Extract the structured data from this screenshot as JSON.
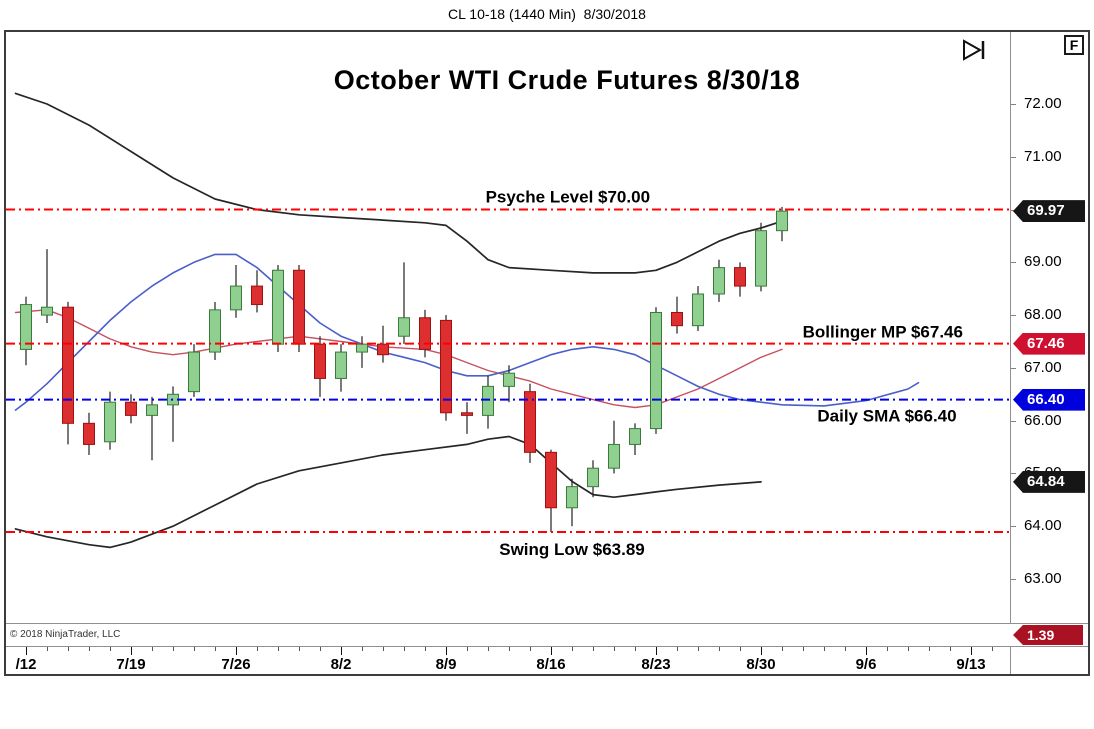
{
  "window": {
    "title": "CL 10-18 (1440 Min)  8/30/2018"
  },
  "toolbar": {
    "f_label": "F"
  },
  "chart": {
    "title": "October WTI Crude Futures 8/30/18",
    "copyright": "© 2018 NinjaTrader, LLC"
  },
  "chart_data": {
    "type": "candlestick",
    "symbol": "CL 10-18",
    "interval": "1440 Min",
    "session_date": "8/30/2018",
    "title": "October WTI Crude Futures 8/30/18",
    "y_axis": {
      "ticks": [
        "72.00",
        "71.00",
        "70.00",
        "69.00",
        "68.00",
        "67.00",
        "66.00",
        "65.00",
        "64.00",
        "63.00"
      ],
      "ylim": [
        62.3,
        72.8
      ]
    },
    "x_axis": {
      "labels": [
        {
          "text": "/12",
          "i": 0
        },
        {
          "text": "7/19",
          "i": 5
        },
        {
          "text": "7/26",
          "i": 10
        },
        {
          "text": "8/2",
          "i": 15
        },
        {
          "text": "8/9",
          "i": 20
        },
        {
          "text": "8/16",
          "i": 25
        },
        {
          "text": "8/23",
          "i": 30
        },
        {
          "text": "8/30",
          "i": 35
        },
        {
          "text": "9/6",
          "i": 40
        },
        {
          "text": "9/13",
          "i": 45
        }
      ]
    },
    "candles": [
      {
        "t": "7/12",
        "o": 67.35,
        "h": 68.35,
        "l": 67.05,
        "c": 68.2
      },
      {
        "t": "7/13",
        "o": 68.0,
        "h": 69.25,
        "l": 67.85,
        "c": 68.15
      },
      {
        "t": "7/16",
        "o": 68.15,
        "h": 68.25,
        "l": 65.55,
        "c": 65.95
      },
      {
        "t": "7/17",
        "o": 65.95,
        "h": 66.15,
        "l": 65.35,
        "c": 65.55
      },
      {
        "t": "7/18",
        "o": 65.6,
        "h": 66.55,
        "l": 65.45,
        "c": 66.35
      },
      {
        "t": "7/19",
        "o": 66.35,
        "h": 66.5,
        "l": 65.95,
        "c": 66.1
      },
      {
        "t": "7/20",
        "o": 66.1,
        "h": 66.45,
        "l": 65.25,
        "c": 66.3
      },
      {
        "t": "7/23",
        "o": 66.3,
        "h": 66.65,
        "l": 65.6,
        "c": 66.5
      },
      {
        "t": "7/24",
        "o": 66.55,
        "h": 67.45,
        "l": 66.45,
        "c": 67.3
      },
      {
        "t": "7/25",
        "o": 67.3,
        "h": 68.25,
        "l": 67.15,
        "c": 68.1
      },
      {
        "t": "7/26",
        "o": 68.1,
        "h": 68.95,
        "l": 67.95,
        "c": 68.55
      },
      {
        "t": "7/27",
        "o": 68.55,
        "h": 68.85,
        "l": 68.05,
        "c": 68.2
      },
      {
        "t": "7/30",
        "o": 67.45,
        "h": 68.95,
        "l": 67.3,
        "c": 68.85
      },
      {
        "t": "7/31",
        "o": 68.85,
        "h": 68.95,
        "l": 67.3,
        "c": 67.45
      },
      {
        "t": "8/1",
        "o": 67.45,
        "h": 67.6,
        "l": 66.45,
        "c": 66.8
      },
      {
        "t": "8/2",
        "o": 66.8,
        "h": 67.45,
        "l": 66.55,
        "c": 67.3
      },
      {
        "t": "8/3",
        "o": 67.3,
        "h": 67.6,
        "l": 67.0,
        "c": 67.45
      },
      {
        "t": "8/6",
        "o": 67.45,
        "h": 67.8,
        "l": 67.1,
        "c": 67.25
      },
      {
        "t": "8/7",
        "o": 67.6,
        "h": 69.0,
        "l": 67.45,
        "c": 67.95
      },
      {
        "t": "8/8",
        "o": 67.95,
        "h": 68.1,
        "l": 67.2,
        "c": 67.35
      },
      {
        "t": "8/9",
        "o": 67.9,
        "h": 68.0,
        "l": 66.0,
        "c": 66.15
      },
      {
        "t": "8/10",
        "o": 66.15,
        "h": 66.35,
        "l": 65.75,
        "c": 66.1
      },
      {
        "t": "8/13",
        "o": 66.1,
        "h": 66.85,
        "l": 65.85,
        "c": 66.65
      },
      {
        "t": "8/14",
        "o": 66.65,
        "h": 67.05,
        "l": 66.35,
        "c": 66.9
      },
      {
        "t": "8/15",
        "o": 66.55,
        "h": 66.7,
        "l": 65.2,
        "c": 65.4
      },
      {
        "t": "8/16",
        "o": 65.4,
        "h": 65.45,
        "l": 63.89,
        "c": 64.35
      },
      {
        "t": "8/17",
        "o": 64.35,
        "h": 64.9,
        "l": 64.0,
        "c": 64.75
      },
      {
        "t": "8/20",
        "o": 64.75,
        "h": 65.25,
        "l": 64.55,
        "c": 65.1
      },
      {
        "t": "8/21",
        "o": 65.1,
        "h": 66.0,
        "l": 65.0,
        "c": 65.55
      },
      {
        "t": "8/22",
        "o": 65.55,
        "h": 65.95,
        "l": 65.35,
        "c": 65.85
      },
      {
        "t": "8/23",
        "o": 65.85,
        "h": 68.15,
        "l": 65.75,
        "c": 68.05
      },
      {
        "t": "8/24",
        "o": 68.05,
        "h": 68.35,
        "l": 67.65,
        "c": 67.8
      },
      {
        "t": "8/27",
        "o": 67.8,
        "h": 68.55,
        "l": 67.7,
        "c": 68.4
      },
      {
        "t": "8/28",
        "o": 68.4,
        "h": 69.05,
        "l": 68.25,
        "c": 68.9
      },
      {
        "t": "8/29",
        "o": 68.9,
        "h": 69.0,
        "l": 68.35,
        "c": 68.55
      },
      {
        "t": "8/30",
        "o": 68.55,
        "h": 69.75,
        "l": 68.45,
        "c": 69.6
      },
      {
        "t": "8/31",
        "o": 69.6,
        "h": 70.05,
        "l": 69.4,
        "c": 69.97
      }
    ],
    "overlays": [
      {
        "name": "bollinger-upper-band",
        "color": "#262626",
        "width": 1.7,
        "points": [
          [
            -0.5,
            72.2
          ],
          [
            1,
            72.0
          ],
          [
            3,
            71.6
          ],
          [
            5,
            71.1
          ],
          [
            7,
            70.6
          ],
          [
            9,
            70.2
          ],
          [
            11,
            70.0
          ],
          [
            13,
            69.9
          ],
          [
            15,
            69.85
          ],
          [
            17,
            69.8
          ],
          [
            19,
            69.75
          ],
          [
            20,
            69.7
          ],
          [
            21,
            69.4
          ],
          [
            22,
            69.05
          ],
          [
            23,
            68.9
          ],
          [
            25,
            68.85
          ],
          [
            27,
            68.8
          ],
          [
            29,
            68.8
          ],
          [
            30,
            68.85
          ],
          [
            31,
            69.0
          ],
          [
            32,
            69.2
          ],
          [
            33,
            69.4
          ],
          [
            34,
            69.55
          ],
          [
            35,
            69.65
          ],
          [
            36,
            69.78
          ]
        ]
      },
      {
        "name": "bollinger-lower-band",
        "color": "#262626",
        "width": 1.7,
        "points": [
          [
            -0.5,
            63.95
          ],
          [
            1,
            63.8
          ],
          [
            3,
            63.65
          ],
          [
            4,
            63.6
          ],
          [
            5,
            63.7
          ],
          [
            7,
            64.0
          ],
          [
            9,
            64.4
          ],
          [
            11,
            64.8
          ],
          [
            13,
            65.05
          ],
          [
            15,
            65.2
          ],
          [
            17,
            65.35
          ],
          [
            19,
            65.45
          ],
          [
            21,
            65.55
          ],
          [
            22,
            65.65
          ],
          [
            23,
            65.7
          ],
          [
            24,
            65.55
          ],
          [
            25,
            65.2
          ],
          [
            26,
            64.85
          ],
          [
            27,
            64.6
          ],
          [
            28,
            64.55
          ],
          [
            29,
            64.6
          ],
          [
            30,
            64.65
          ],
          [
            31,
            64.7
          ],
          [
            33,
            64.78
          ],
          [
            35,
            64.84
          ]
        ]
      },
      {
        "name": "bollinger-midline-red",
        "color": "#c75060",
        "width": 1.4,
        "points": [
          [
            -0.5,
            68.05
          ],
          [
            1,
            68.1
          ],
          [
            2,
            67.95
          ],
          [
            3,
            67.75
          ],
          [
            4,
            67.55
          ],
          [
            5,
            67.4
          ],
          [
            6,
            67.3
          ],
          [
            7,
            67.25
          ],
          [
            8,
            67.3
          ],
          [
            10,
            67.45
          ],
          [
            12,
            67.55
          ],
          [
            13,
            67.6
          ],
          [
            15,
            67.5
          ],
          [
            17,
            67.4
          ],
          [
            19,
            67.35
          ],
          [
            20,
            67.25
          ],
          [
            21,
            67.1
          ],
          [
            22,
            66.95
          ],
          [
            23,
            66.85
          ],
          [
            24,
            66.75
          ],
          [
            25,
            66.6
          ],
          [
            26,
            66.5
          ],
          [
            27,
            66.4
          ],
          [
            28,
            66.3
          ],
          [
            29,
            66.25
          ],
          [
            30,
            66.3
          ],
          [
            31,
            66.45
          ],
          [
            32,
            66.6
          ],
          [
            33,
            66.8
          ],
          [
            34,
            67.0
          ],
          [
            35,
            67.2
          ],
          [
            36,
            67.35
          ]
        ]
      },
      {
        "name": "daily-sma-blue",
        "color": "#4a5fc8",
        "width": 1.6,
        "points": [
          [
            -0.5,
            66.2
          ],
          [
            0,
            66.35
          ],
          [
            1,
            66.7
          ],
          [
            2,
            67.1
          ],
          [
            3,
            67.5
          ],
          [
            4,
            67.9
          ],
          [
            5,
            68.25
          ],
          [
            6,
            68.55
          ],
          [
            7,
            68.8
          ],
          [
            8,
            69.0
          ],
          [
            9,
            69.15
          ],
          [
            10,
            69.15
          ],
          [
            11,
            68.9
          ],
          [
            12,
            68.55
          ],
          [
            13,
            68.2
          ],
          [
            14,
            67.85
          ],
          [
            15,
            67.6
          ],
          [
            16,
            67.45
          ],
          [
            17,
            67.3
          ],
          [
            18,
            67.2
          ],
          [
            19,
            67.1
          ],
          [
            20,
            66.95
          ],
          [
            21,
            66.85
          ],
          [
            22,
            66.85
          ],
          [
            23,
            66.95
          ],
          [
            24,
            67.1
          ],
          [
            25,
            67.25
          ],
          [
            26,
            67.35
          ],
          [
            27,
            67.4
          ],
          [
            28,
            67.35
          ],
          [
            29,
            67.25
          ],
          [
            30,
            67.05
          ],
          [
            31,
            66.85
          ],
          [
            32,
            66.65
          ],
          [
            33,
            66.5
          ],
          [
            34,
            66.4
          ],
          [
            35,
            66.35
          ],
          [
            36,
            66.3
          ],
          [
            38,
            66.28
          ],
          [
            40,
            66.38
          ],
          [
            42,
            66.6
          ],
          [
            42.5,
            66.72
          ]
        ]
      }
    ],
    "levels": [
      {
        "price": 70.0,
        "color": "#ff0000",
        "label": "Psyche Level $70.00",
        "label_i": 25.8,
        "label_dy": -7
      },
      {
        "price": 67.46,
        "color": "#ff0000",
        "label": "Bollinger MP $67.46",
        "label_i": 40.8,
        "label_dy": -6
      },
      {
        "price": 66.4,
        "color": "#0000ee",
        "label": "Daily SMA $66.40",
        "label_i": 41.0,
        "label_dy": 22
      },
      {
        "price": 63.89,
        "color": "#ff0000",
        "label": "Swing Low $63.89",
        "label_i": 26.0,
        "label_dy": 23
      }
    ],
    "price_badges": [
      {
        "value": "69.97",
        "price": 69.97,
        "bg": "#161616"
      },
      {
        "value": "67.46",
        "price": 67.46,
        "bg": "#d01030"
      },
      {
        "value": "66.40",
        "price": 66.4,
        "bg": "#0000dd"
      },
      {
        "value": "64.84",
        "price": 64.84,
        "bg": "#161616"
      }
    ],
    "indicator_panel": {
      "badge": {
        "value": "1.39",
        "bg": "#aa1122"
      }
    },
    "colors": {
      "up": "#8fcf8f",
      "up_border": "#3a7a3a",
      "down": "#dd2f2f",
      "down_border": "#9e1111",
      "wick": "#222222",
      "level_red": "#ff0000",
      "level_blue": "#0000ee"
    }
  }
}
